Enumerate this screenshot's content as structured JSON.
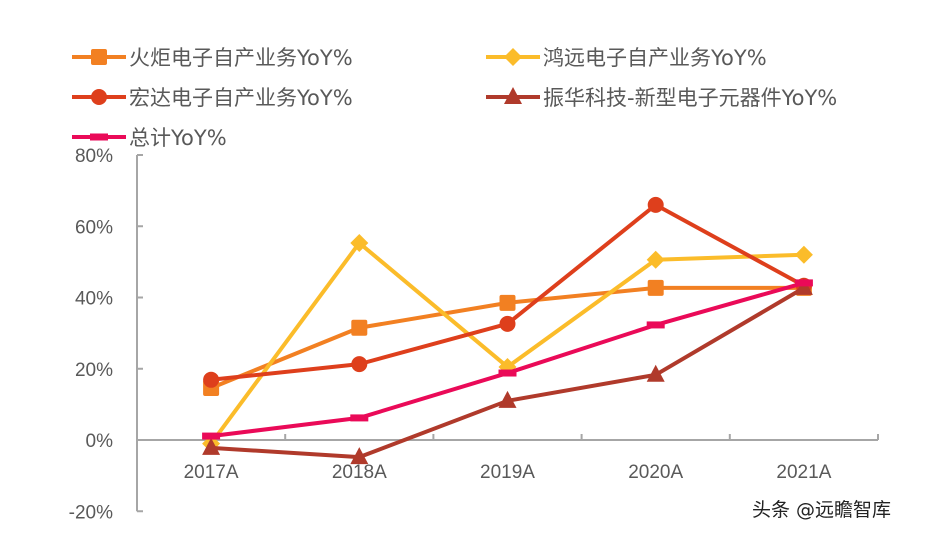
{
  "chart_data": {
    "type": "line",
    "title": "",
    "xlabel": "",
    "ylabel": "",
    "categories": [
      "2017A",
      "2018A",
      "2019A",
      "2020A",
      "2021A"
    ],
    "ylim": [
      -20,
      80
    ],
    "yticks": [
      -20,
      0,
      20,
      40,
      60,
      80
    ],
    "ytick_labels": [
      "-20%",
      "0%",
      "20%",
      "40%",
      "60%",
      "80%"
    ],
    "grid": false,
    "legend_position": "top",
    "series": [
      {
        "name": "火炬电子自产业务YoY%",
        "color": "#F28022",
        "marker": "square",
        "values": [
          14.6,
          31.5,
          38.5,
          42.7,
          42.7
        ]
      },
      {
        "name": "鸿远电子自产业务YoY%",
        "color": "#FBBC2A",
        "marker": "diamond",
        "values": [
          -1.0,
          55.3,
          20.5,
          50.6,
          52.0
        ]
      },
      {
        "name": "宏达电子自产业务YoY%",
        "color": "#DE3F1C",
        "marker": "circle",
        "values": [
          16.9,
          21.3,
          32.6,
          66.0,
          43.3
        ]
      },
      {
        "name": "振华科技-新型电子元器件YoY%",
        "color": "#B03A2B",
        "marker": "triangle",
        "values": [
          -2.2,
          -4.8,
          11.0,
          18.3,
          42.7
        ]
      },
      {
        "name": "总计YoY%",
        "color": "#EA0A58",
        "marker": "dash",
        "values": [
          1.1,
          6.2,
          18.8,
          32.3,
          44.1
        ]
      }
    ]
  },
  "watermark": "头条 @远瞻智库"
}
